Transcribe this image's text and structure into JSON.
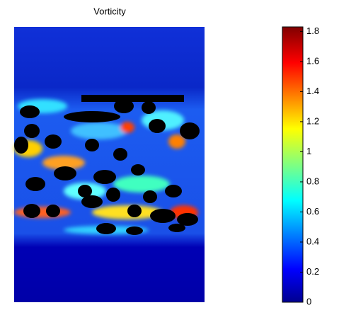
{
  "chart_data": {
    "type": "heatmap",
    "title": "Vorticity",
    "colorbar": {
      "clim": [
        0,
        1.83
      ],
      "ticks": [
        0,
        0.2,
        0.4,
        0.6,
        0.8,
        1,
        1.2,
        1.4,
        1.6,
        1.8
      ]
    }
  }
}
